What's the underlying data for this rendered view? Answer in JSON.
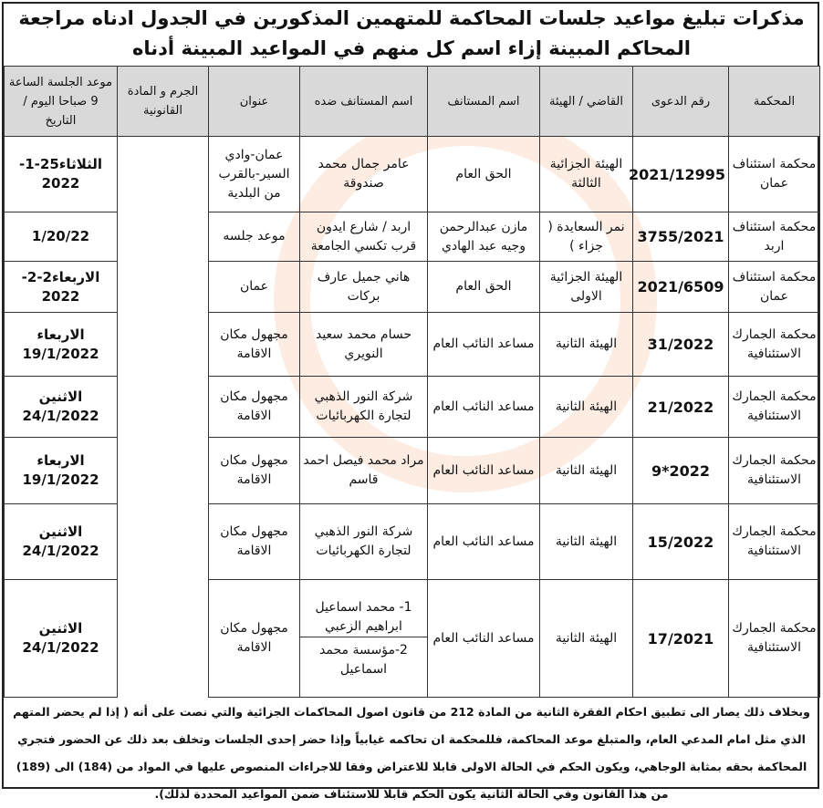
{
  "title": "مذكرات تبليغ مواعيد جلسات المحاكمة للمتهمين المذكورين في الجدول ادناه مراجعة المحاكم المبينة إزاء اسم كل منهم في المواعيد المبينة أدناه",
  "headers": [
    "المحكمة",
    "رقم الدعوى",
    "القاضي / الهيئة",
    "اسم المستانف",
    "اسم المستانف ضده",
    "عنوان",
    "الجرم و المادة القانونية",
    "موعد الجلسة الساعة 9 صباحا اليوم / التاريخ"
  ],
  "rows": [
    {
      "court": "محكمة استئناف عمان",
      "case": "2021/12995",
      "judge": "الهيئة الجزائية الثالثة",
      "appellant": "الحق العام",
      "respondent": "عامر جمال محمد صندوقة",
      "address": "عمان-وادي السير-بالقرب من البلدية",
      "date": "الثلاثاء25-1-2022"
    },
    {
      "court": "محكمة استئناف اربد",
      "case": "3755/2021",
      "judge": "نمر السعايدة ( جزاء )",
      "appellant": "مازن عبدالرحمن وجيه عبد الهادي",
      "respondent": "اربد / شارع ايدون قرب تكسي الجامعة",
      "address": "موعد جلسه",
      "date": "1/20/22"
    },
    {
      "court": "محكمة استئناف عمان",
      "case": "2021/6509",
      "judge": "الهيئة الجزائية الاولى",
      "appellant": "الحق العام",
      "respondent": "هاني جميل عارف بركات",
      "address": "عمان",
      "date": "الاربعاء2-2-2022"
    },
    {
      "court": "محكمة الجمارك الاستئنافية",
      "case": "31/2022",
      "judge": "الهيئة الثانية",
      "appellant": "مساعد النائب العام",
      "respondent": "حسام محمد سعيد النويري",
      "address": "مجهول مكان الاقامة",
      "date": "الاربعاء 19/1/2022"
    },
    {
      "court": "محكمة الجمارك الاستئنافية",
      "case": "21/2022",
      "judge": "الهيئة الثانية",
      "appellant": "مساعد النائب العام",
      "respondent": "شركة النور الذهبي لتجارة الكهربائيات",
      "address": "مجهول مكان الاقامة",
      "date": "الاثنين 24/1/2022"
    },
    {
      "court": "محكمة الجمارك الاستئنافية",
      "case": "2022*9",
      "judge": "الهيئة الثانية",
      "appellant": "مساعد النائب العام",
      "respondent": "مراد محمد فيصل احمد قاسم",
      "address": "مجهول مكان الاقامة",
      "date": "الاربعاء 19/1/2022"
    },
    {
      "court": "محكمة الجمارك الاستئنافية",
      "case": "15/2022",
      "judge": "الهيئة الثانية",
      "appellant": "مساعد النائب العام",
      "respondent": "شركة النور الذهبي لتجارة الكهربائيات",
      "address": "مجهول مكان الاقامة",
      "date": "الاثنين 24/1/2022"
    },
    {
      "court": "محكمة الجمارك الاستئنافية",
      "case": "17/2021",
      "judge": "الهيئة الثانية",
      "appellant": "مساعد النائب العام",
      "respondent": "1- محمد اسماعيل ابراهيم الزعبي",
      "respondent2": "2-مؤسسة محمد اسماعيل",
      "address": "مجهول مكان الاقامة",
      "date": "الاثنين 24/1/2022"
    }
  ],
  "footer": "وبخلاف ذلك يصار الى تطبيق احكام الفقرة الثانية من المادة 212 من قانون اصول المحاكمات الجزائية والتي نصت على أنه ( إذا لم يحضر المتهم الذي مثل امام المدعي العام، والمتبلغ موعد المحاكمة، فللمحكمة ان تحاكمه غيابياً وإذا حضر إحدى الجلسات وتخلف بعد ذلك عن الحضور فتجري المحاكمة بحقه بمثابة الوجاهي، ويكون الحكم في الحالة الاولى قابلا للاعتراض وفقا للاجراءات المنصوص عليها في المواد من (184) الى (189) من هذا القانون وفي الحالة الثانية يكون الحكم قابلا للاستئناف ضمن المواعيد المحددة لذلك).",
  "watermark": "السعة alsaa.net"
}
